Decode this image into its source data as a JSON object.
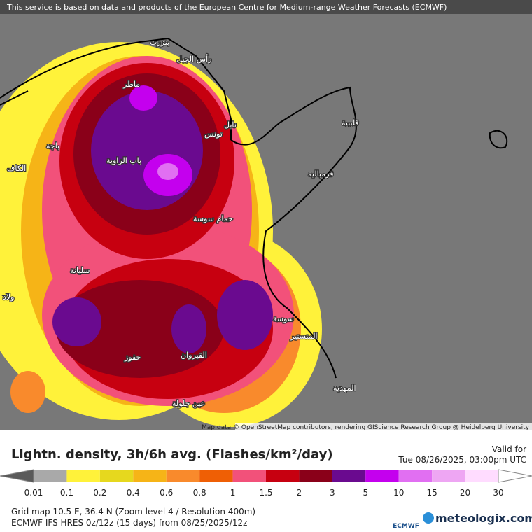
{
  "header": {
    "attribution": "This service is based on data and products of the European Centre for Medium-range Weather Forecasts (ECMWF)"
  },
  "map": {
    "labels": [
      "بنزرت",
      "رأس الجبل",
      "ماطر",
      "تونس",
      "نابل",
      "قليبية",
      "باجة",
      "باب الزاوية",
      "الكاف",
      "قرمبالية",
      "سليانة",
      "حمام سوسة",
      "سوسة",
      "المنستير",
      "القيروان",
      "حفوز",
      "المهدية",
      "عين جلولة",
      "ولاد"
    ],
    "credit": "Map data © OpenStreetMap contributors, rendering GIScience Research Group @ Heidelberg University"
  },
  "legend": {
    "title": "Lightn. density, 3h/6h avg. (Flashes/km²/day)",
    "ticks": [
      "0.01",
      "0.1",
      "0.2",
      "0.4",
      "0.6",
      "0.8",
      "1",
      "1.5",
      "2",
      "3",
      "5",
      "10",
      "15",
      "20",
      "30"
    ],
    "colors": [
      "#5a5a5a",
      "#a9a9a9",
      "#fff23a",
      "#e6d81e",
      "#f6b417",
      "#f98a2c",
      "#ef5f05",
      "#f2517a",
      "#c70010",
      "#8a0019",
      "#6a0a8f",
      "#c400ee",
      "#e16ff2",
      "#eea6f3",
      "#ffdcff",
      "#ffffff"
    ]
  },
  "valid": {
    "label": "Valid for",
    "time": "Tue 08/26/2025, 03:00pm UTC"
  },
  "footer": {
    "grid": "Grid map 10.5 E, 36.4 N (Zoom level 4 / Resolution 400m)",
    "model": "ECMWF IFS HRES 0z/12z (15 days) from  08/25/2025/12z",
    "ecmwf": "ECMWF",
    "brand": "meteologix.com"
  }
}
